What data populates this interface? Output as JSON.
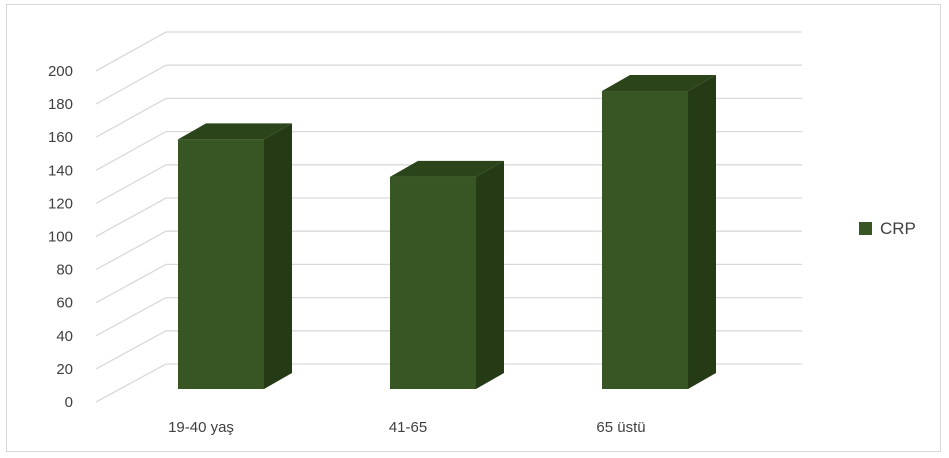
{
  "chart_data": {
    "type": "bar",
    "style": "3d-column",
    "categories": [
      "19-40 yaş",
      "41-65",
      "65 üstü"
    ],
    "series": [
      {
        "name": "CRP",
        "values": [
          160,
          136,
          191
        ],
        "color": "#375623"
      }
    ],
    "ylim": [
      0,
      200
    ],
    "yticks": [
      0,
      20,
      40,
      60,
      80,
      100,
      120,
      140,
      160,
      180,
      200
    ],
    "grid": true,
    "legend_position": "right",
    "colors": {
      "front": "#375623",
      "side": "#243b16",
      "top": "#2b4419",
      "grid": "#d9d9d9",
      "text": "#404040"
    }
  }
}
